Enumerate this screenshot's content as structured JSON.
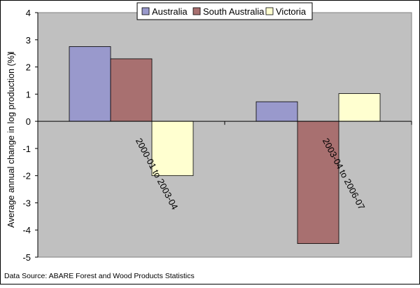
{
  "chart_data": {
    "type": "bar",
    "categories": [
      "2000-01 to 2003-04",
      "2003-04 to 2006-07"
    ],
    "series": [
      {
        "name": "Australia",
        "values": [
          2.75,
          0.72
        ],
        "color": "#9999cc"
      },
      {
        "name": "South Australia",
        "values": [
          2.3,
          -4.5
        ],
        "color": "#a87070"
      },
      {
        "name": "Victoria",
        "values": [
          -2.0,
          1.02
        ],
        "color": "#ffffd0"
      }
    ],
    "ylabel": "Average annual change in log production (%)",
    "ylim": [
      -5,
      4
    ],
    "yticks": [
      4,
      3,
      2,
      1,
      0,
      -1,
      -2,
      -3,
      -4,
      -5
    ],
    "grid": false,
    "legend": "top",
    "plot_background": "#c0c0c0",
    "source": "Data Source: ABARE Forest and Wood Products Statistics"
  }
}
